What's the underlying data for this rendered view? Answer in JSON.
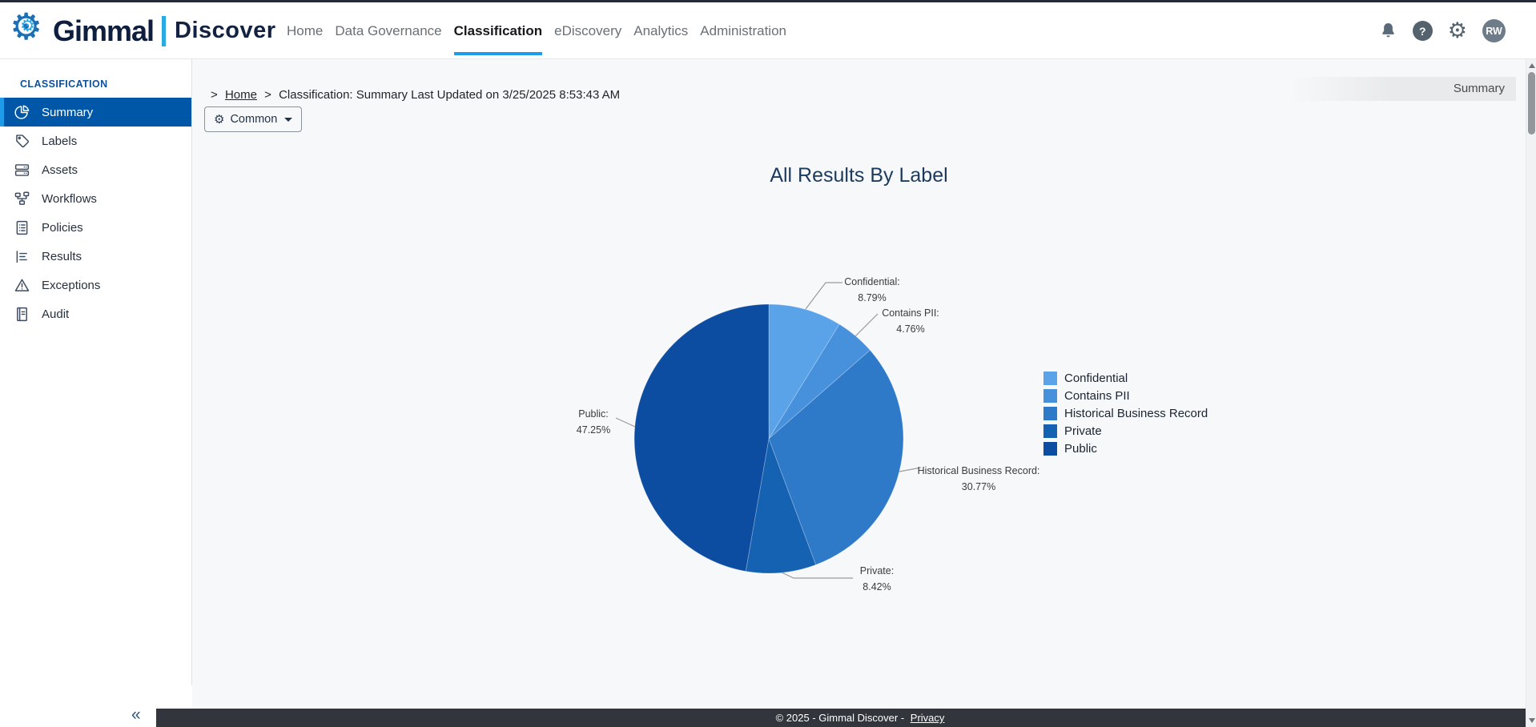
{
  "icons": {
    "gear": "⚙",
    "help": "?"
  },
  "topbar": {
    "brand": {
      "name": "Gimmal",
      "product": "Discover"
    },
    "nav": [
      {
        "label": "Home",
        "active": false
      },
      {
        "label": "Data Governance",
        "active": false
      },
      {
        "label": "Classification",
        "active": true
      },
      {
        "label": "eDiscovery",
        "active": false
      },
      {
        "label": "Analytics",
        "active": false
      },
      {
        "label": "Administration",
        "active": false
      }
    ],
    "avatar_initials": "RW"
  },
  "sidebar": {
    "section_title": "CLASSIFICATION",
    "items": [
      {
        "label": "Summary",
        "icon": "pie-chart-icon",
        "active": true
      },
      {
        "label": "Labels",
        "icon": "tag-icon",
        "active": false
      },
      {
        "label": "Assets",
        "icon": "assets-icon",
        "active": false
      },
      {
        "label": "Workflows",
        "icon": "workflow-icon",
        "active": false
      },
      {
        "label": "Policies",
        "icon": "clipboard-list-icon",
        "active": false
      },
      {
        "label": "Results",
        "icon": "results-list-icon",
        "active": false
      },
      {
        "label": "Exceptions",
        "icon": "warning-triangle-icon",
        "active": false
      },
      {
        "label": "Audit",
        "icon": "audit-document-icon",
        "active": false
      }
    ],
    "collapse_glyph": "«"
  },
  "breadcrumb": {
    "prefix": ">",
    "home": "Home",
    "separator": ">",
    "current": "Classification: Summary Last Updated on 3/25/2025 8:53:43 AM"
  },
  "page_corner_label": "Summary",
  "toolbar": {
    "common_button": "Common"
  },
  "chart_data": {
    "type": "pie",
    "title": "All Results By Label",
    "labels": [
      "Confidential",
      "Contains PII",
      "Historical Business Record",
      "Private",
      "Public"
    ],
    "values": [
      8.79,
      4.76,
      30.77,
      8.42,
      47.25
    ],
    "unit": "%",
    "colors": [
      "#5ba3e9",
      "#4690dc",
      "#2e79c8",
      "#1561b2",
      "#0d4da1"
    ],
    "legend_position": "right",
    "start_angle_deg": 0,
    "direction": "clockwise",
    "label_format": "{label}: {value}%"
  },
  "footer": {
    "text": "© 2025 - Gimmal Discover -",
    "privacy_link": "Privacy"
  }
}
